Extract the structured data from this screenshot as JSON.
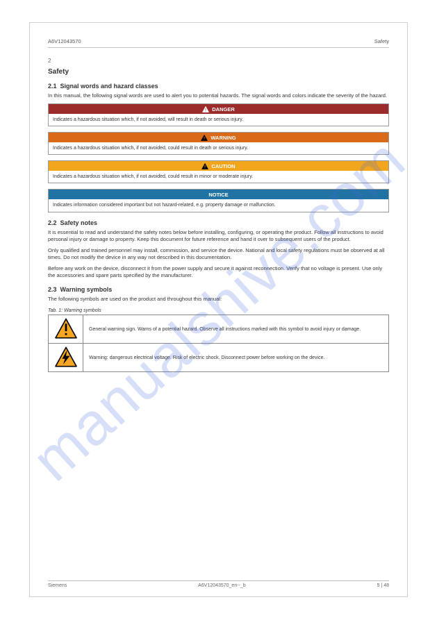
{
  "header": {
    "doc_id": "A6V12043570",
    "title_right": "Safety"
  },
  "section": {
    "num_label": "2",
    "title": "Safety",
    "sub1_num": "2.1",
    "sub1_title": "Signal words and hazard classes",
    "sub1_body": "In this manual, the following signal words are used to alert you to potential hazards. The signal words and colors indicate the severity of the hazard.",
    "sub2_num_a": "2.2",
    "sub2_title_a": "Safety notes",
    "sub2_body_a": "It is essential to read and understand the safety notes below before installing, configuring, or operating the product. Follow all instructions to avoid personal injury or damage to property. Keep this document for future reference and hand it over to subsequent users of the product.",
    "sub2_body_b": "Only qualified and trained personnel may install, commission, and service the device. National and local safety regulations must be observed at all times. Do not modify the device in any way not described in this documentation.",
    "sub2_body_c": "Before any work on the device, disconnect it from the power supply and secure it against reconnection. Verify that no voltage is present. Use only the accessories and spare parts specified by the manufacturer.",
    "sub2_num_b": "2.3",
    "sub2_title_b": "Warning symbols",
    "sub2_body_d": "The following symbols are used on the product and throughout this manual:"
  },
  "hazards": [
    {
      "bar_color": "#9c2b2b",
      "icon": "tri-white",
      "label": "DANGER",
      "text": "Indicates a hazardous situation which, if not avoided, will result in death or serious injury."
    },
    {
      "bar_color": "#d96a1a",
      "icon": "tri-black",
      "label": "WARNING",
      "text": "Indicates a hazardous situation which, if not avoided, could result in death or serious injury."
    },
    {
      "bar_color": "#f2a61e",
      "icon": "tri-black",
      "label": "CAUTION",
      "text": "Indicates a hazardous situation which, if not avoided, could result in minor or moderate injury."
    },
    {
      "bar_color": "#2173a3",
      "icon": "none",
      "label": "NOTICE",
      "text": "Indicates information considered important but not hazard-related, e.g. property damage or malfunction."
    }
  ],
  "symbol_table": {
    "caption": "Tab. 1: Warning symbols",
    "rows": [
      {
        "icon": "general",
        "text": "General warning sign. Warns of a potential hazard. Observe all instructions marked with this symbol to avoid injury or damage."
      },
      {
        "icon": "voltage",
        "text": "Warning: dangerous electrical voltage. Risk of electric shock. Disconnect power before working on the device."
      }
    ]
  },
  "icon_style": {
    "triangle_fill": "#f5a623",
    "triangle_stroke": "#000000",
    "bang_color": "#000000",
    "bolt_color": "#000000"
  },
  "footer": {
    "left": "Siemens",
    "center": "A6V12043570_en--_b",
    "right": "5 | 48"
  },
  "watermark": "manualshive.com"
}
